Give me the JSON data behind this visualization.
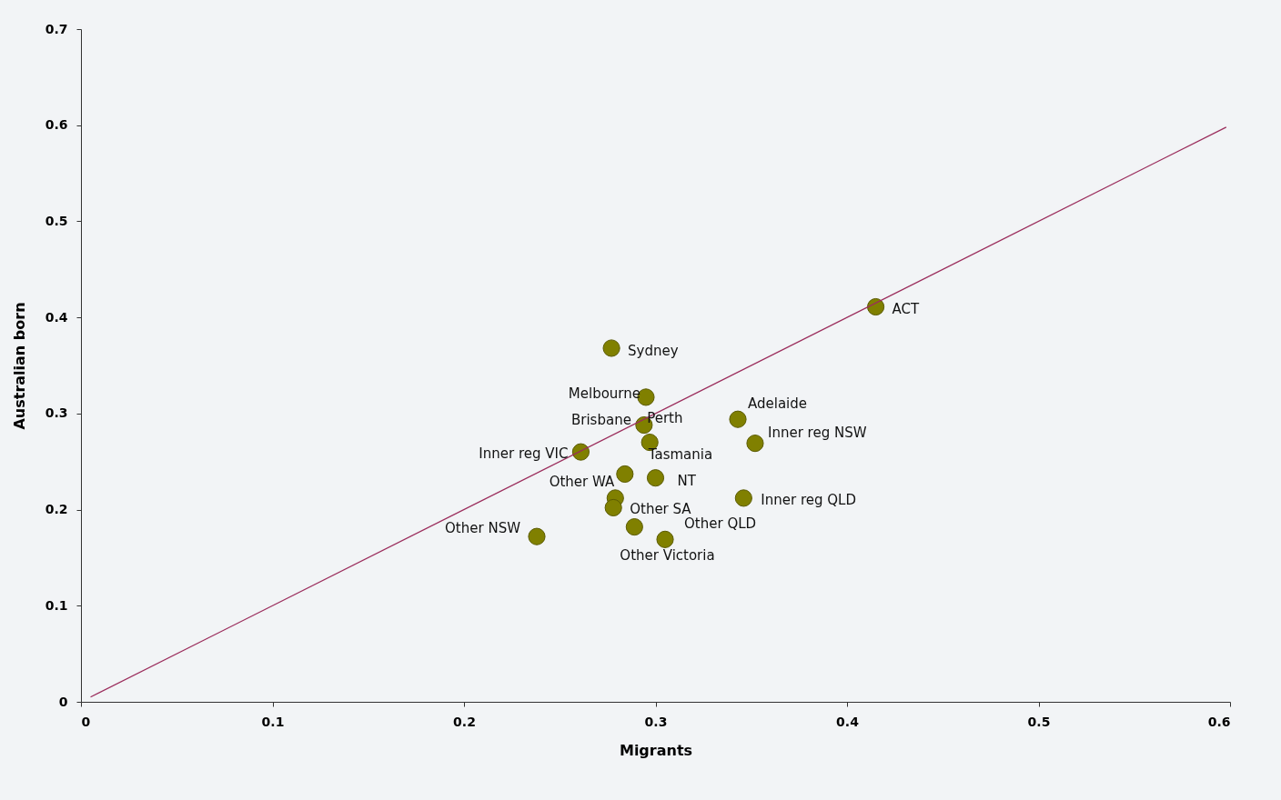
{
  "chart_data": {
    "type": "scatter",
    "xlabel": "Migrants",
    "ylabel": "Australian born",
    "xlim": [
      0,
      0.6
    ],
    "ylim": [
      0,
      0.7
    ],
    "xticks": [
      0,
      0.1,
      0.2,
      0.3,
      0.4,
      0.5,
      0.6
    ],
    "yticks": [
      0,
      0.1,
      0.2,
      0.3,
      0.4,
      0.5,
      0.6,
      0.7
    ],
    "grid": false,
    "series": [
      {
        "marker": "circle",
        "color": "#808000",
        "x": [
          0.415,
          0.277,
          0.295,
          0.343,
          0.352,
          0.261,
          0.297,
          0.284,
          0.294,
          0.3,
          0.279,
          0.278,
          0.305,
          0.289,
          0.346,
          0.238
        ],
        "values": [
          0.411,
          0.368,
          0.317,
          0.294,
          0.269,
          0.26,
          0.27,
          0.237,
          0.288,
          0.233,
          0.212,
          0.202,
          0.169,
          0.182,
          0.212,
          0.172
        ]
      },
      {
        "type": "line",
        "color": "#9b2d5c",
        "x": [
          0.005,
          0.598
        ],
        "values": [
          0.005,
          0.598
        ]
      }
    ],
    "annotations": [
      {
        "text": "ACT",
        "x": 0.415,
        "y": 0.411
      },
      {
        "text": "Sydney",
        "x": 0.277,
        "y": 0.368
      },
      {
        "text": "Melbourne",
        "x": 0.295,
        "y": 0.317
      },
      {
        "text": "Adelaide",
        "x": 0.343,
        "y": 0.294
      },
      {
        "text": "Inner reg NSW",
        "x": 0.352,
        "y": 0.269
      },
      {
        "text": "Inner reg VIC",
        "x": 0.261,
        "y": 0.26
      },
      {
        "text": "Perth",
        "x": 0.297,
        "y": 0.27
      },
      {
        "text": "Tasmania",
        "x": 0.284,
        "y": 0.237
      },
      {
        "text": "Brisbane",
        "x": 0.294,
        "y": 0.288
      },
      {
        "text": "NT",
        "x": 0.3,
        "y": 0.233
      },
      {
        "text": "Other WA",
        "x": 0.279,
        "y": 0.212
      },
      {
        "text": "Other SA",
        "x": 0.278,
        "y": 0.202
      },
      {
        "text": "Other QLD",
        "x": 0.305,
        "y": 0.169
      },
      {
        "text": "Other Victoria",
        "x": 0.289,
        "y": 0.182
      },
      {
        "text": "Inner reg QLD",
        "x": 0.346,
        "y": 0.212
      },
      {
        "text": "Other NSW",
        "x": 0.238,
        "y": 0.172
      }
    ]
  }
}
